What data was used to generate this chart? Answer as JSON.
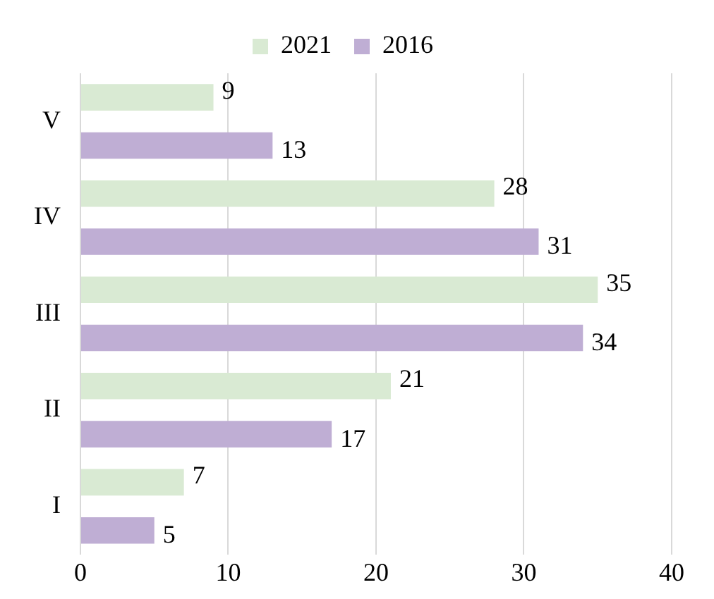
{
  "chart_data": {
    "type": "bar",
    "orientation": "horizontal",
    "categories": [
      "V",
      "IV",
      "III",
      "II",
      "I"
    ],
    "series": [
      {
        "name": "2021",
        "color": "#d9ead3",
        "values": [
          9,
          28,
          35,
          21,
          7
        ]
      },
      {
        "name": "2016",
        "color": "#bfaed4",
        "values": [
          13,
          31,
          34,
          17,
          5
        ]
      }
    ],
    "xlim": [
      0,
      40
    ],
    "xticks": [
      0,
      10,
      20,
      30,
      40
    ],
    "grid": "x",
    "legend": "top",
    "data_labels": true
  }
}
